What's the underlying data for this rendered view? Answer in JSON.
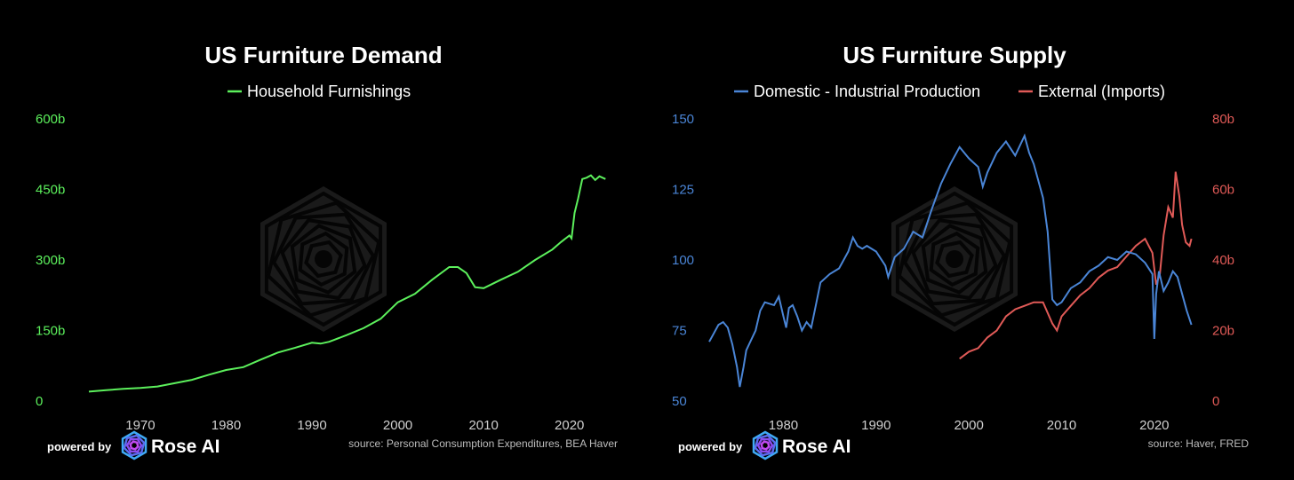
{
  "colors": {
    "demand": "#5cf05c",
    "domestic": "#4a85d6",
    "imports": "#e05a57",
    "axis_text_x": "#cfcfcf"
  },
  "branding": {
    "powered_by": "powered by",
    "name": "Rose AI",
    "icon": "rose-ai-logo-icon",
    "watermark_icon": "hexagon-spiral-watermark-icon"
  },
  "chart_data": [
    {
      "type": "line",
      "title": "US Furniture Demand",
      "source": "source: Personal Consumption Expenditures, BEA Haver",
      "xlim": [
        1964,
        2025
      ],
      "ylim": [
        0,
        600
      ],
      "x_ticks": [
        "1970",
        "1980",
        "1990",
        "2000",
        "2010",
        "2020"
      ],
      "y_ticks": [
        "0",
        "150b",
        "300b",
        "450b",
        "600b"
      ],
      "legend_placement": "top-center",
      "grid": false,
      "series": [
        {
          "name": "Household Furnishings",
          "color": "#5cf05c",
          "x": [
            1964,
            1966,
            1968,
            1970,
            1972,
            1974,
            1976,
            1978,
            1980,
            1982,
            1984,
            1986,
            1988,
            1990,
            1991,
            1992,
            1994,
            1996,
            1998,
            2000,
            2002,
            2004,
            2006,
            2007,
            2008,
            2009,
            2010,
            2012,
            2014,
            2016,
            2018,
            2019,
            2020,
            2020.25,
            2020.6,
            2021,
            2021.5,
            2022,
            2022.5,
            2023,
            2023.5,
            2024.2
          ],
          "y": [
            20,
            23,
            26,
            28,
            31,
            38,
            45,
            56,
            66,
            72,
            88,
            103,
            113,
            124,
            122,
            126,
            140,
            155,
            175,
            210,
            228,
            258,
            285,
            285,
            272,
            242,
            240,
            258,
            275,
            300,
            322,
            338,
            352,
            346,
            400,
            430,
            472,
            475,
            480,
            470,
            478,
            472
          ]
        }
      ]
    },
    {
      "type": "line",
      "title": "US Furniture Supply",
      "source": "source: Haver, FRED",
      "xlim": [
        1972,
        2025
      ],
      "ylim_left": [
        50,
        150
      ],
      "ylim_right": [
        0,
        80
      ],
      "x_ticks": [
        "1980",
        "1990",
        "2000",
        "2010",
        "2020"
      ],
      "y_ticks_left": [
        "50",
        "75",
        "100",
        "125",
        "150"
      ],
      "y_ticks_right": [
        "0",
        "20b",
        "40b",
        "60b",
        "80b"
      ],
      "legend_placement": "top-center",
      "grid": false,
      "series": [
        {
          "name": "Domestic - Industrial Production",
          "axis": "left",
          "color": "#4a85d6",
          "x": [
            1972,
            1972.5,
            1973,
            1973.5,
            1974,
            1974.5,
            1975,
            1975.3,
            1975.7,
            1976,
            1977,
            1977.5,
            1978,
            1979,
            1979.5,
            1980,
            1980.3,
            1980.6,
            1981,
            1981.5,
            1982,
            1982.5,
            1983,
            1983.5,
            1984,
            1985,
            1986,
            1987,
            1987.5,
            1988,
            1988.5,
            1989,
            1990,
            1991,
            1991.3,
            1992,
            1993,
            1994,
            1995,
            1996,
            1997,
            1998,
            1999,
            2000,
            2001,
            2001.5,
            2002,
            2003,
            2004,
            2005,
            2006,
            2006.5,
            2007,
            2008,
            2008.5,
            2009,
            2009.5,
            2010,
            2011,
            2012,
            2013,
            2014,
            2015,
            2016,
            2017,
            2018,
            2019,
            2019.8,
            2020,
            2020.2,
            2020.5,
            2021,
            2021.5,
            2022,
            2022.5,
            2023,
            2023.5,
            2024
          ],
          "y": [
            71,
            74,
            77,
            78,
            76,
            70,
            62,
            55,
            62,
            68,
            75,
            82,
            85,
            84,
            87,
            80,
            76,
            83,
            84,
            80,
            75,
            78,
            76,
            84,
            92,
            95,
            97,
            103,
            108,
            105,
            104,
            105,
            103,
            98,
            94,
            101,
            104,
            110,
            108,
            118,
            127,
            134,
            140,
            136,
            133,
            126,
            131,
            138,
            142,
            137,
            144,
            138,
            134,
            122,
            110,
            86,
            84,
            85,
            90,
            92,
            96,
            98,
            101,
            100,
            103,
            102,
            99,
            95,
            72,
            88,
            96,
            89,
            92,
            96,
            94,
            88,
            82,
            77
          ]
        },
        {
          "name": "External (Imports)",
          "axis": "right",
          "color": "#e05a57",
          "x": [
            1999,
            2000,
            2001,
            2002,
            2003,
            2004,
            2005,
            2006,
            2007,
            2008,
            2009,
            2009.5,
            2010,
            2011,
            2012,
            2013,
            2014,
            2015,
            2016,
            2017,
            2018,
            2019,
            2019.8,
            2020.2,
            2020.6,
            2021,
            2021.5,
            2022,
            2022.3,
            2022.7,
            2023,
            2023.4,
            2023.8,
            2024
          ],
          "y": [
            12,
            14,
            15,
            18,
            20,
            24,
            26,
            27,
            28,
            28,
            22,
            20,
            24,
            27,
            30,
            32,
            35,
            37,
            38,
            41,
            44,
            46,
            42,
            33,
            36,
            47,
            55,
            52,
            65,
            58,
            50,
            45,
            44,
            46
          ]
        }
      ]
    }
  ]
}
